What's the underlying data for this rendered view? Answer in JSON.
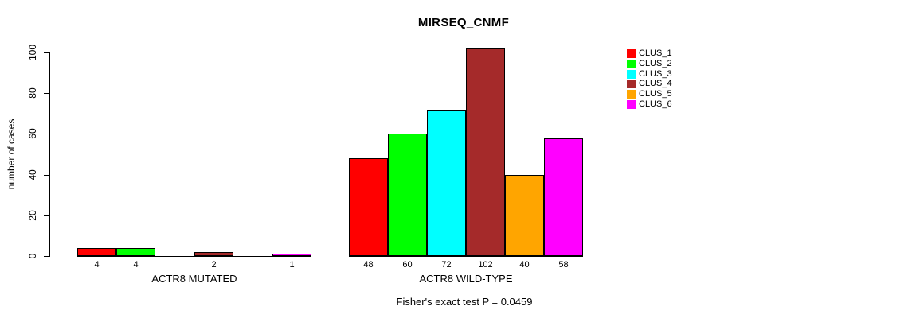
{
  "title": "MIRSEQ_CNMF",
  "footer": "Fisher's exact test P = 0.0459",
  "legend": {
    "items": [
      {
        "label": "CLUS_1",
        "color": "#FF0000"
      },
      {
        "label": "CLUS_2",
        "color": "#00FF00"
      },
      {
        "label": "CLUS_3",
        "color": "#00FFFF"
      },
      {
        "label": "CLUS_4",
        "color": "#A52A2A"
      },
      {
        "label": "CLUS_5",
        "color": "#FFA500"
      },
      {
        "label": "CLUS_6",
        "color": "#FF00FF"
      }
    ]
  },
  "chart_data": {
    "type": "bar",
    "title": "MIRSEQ_CNMF",
    "xlabel": "",
    "ylabel": "number of cases",
    "ylim": [
      0,
      100
    ],
    "yticks": [
      0,
      20,
      40,
      60,
      80,
      100
    ],
    "grid": false,
    "legend_position": "right",
    "series_names": [
      "CLUS_1",
      "CLUS_2",
      "CLUS_3",
      "CLUS_4",
      "CLUS_5",
      "CLUS_6"
    ],
    "colors": [
      "#FF0000",
      "#00FF00",
      "#00FFFF",
      "#A52A2A",
      "#FFA500",
      "#FF00FF"
    ],
    "groups": [
      {
        "label": "ACTR8 MUTATED",
        "values": [
          4,
          4,
          0,
          2,
          0,
          1
        ],
        "bar_labels": [
          "4",
          "4",
          "",
          "2",
          "",
          "1"
        ]
      },
      {
        "label": "ACTR8 WILD-TYPE",
        "values": [
          48,
          60,
          72,
          102,
          40,
          58
        ],
        "bar_labels": [
          "48",
          "60",
          "72",
          "102",
          "40",
          "58"
        ]
      }
    ],
    "annotation": "Fisher's exact test P = 0.0459"
  }
}
